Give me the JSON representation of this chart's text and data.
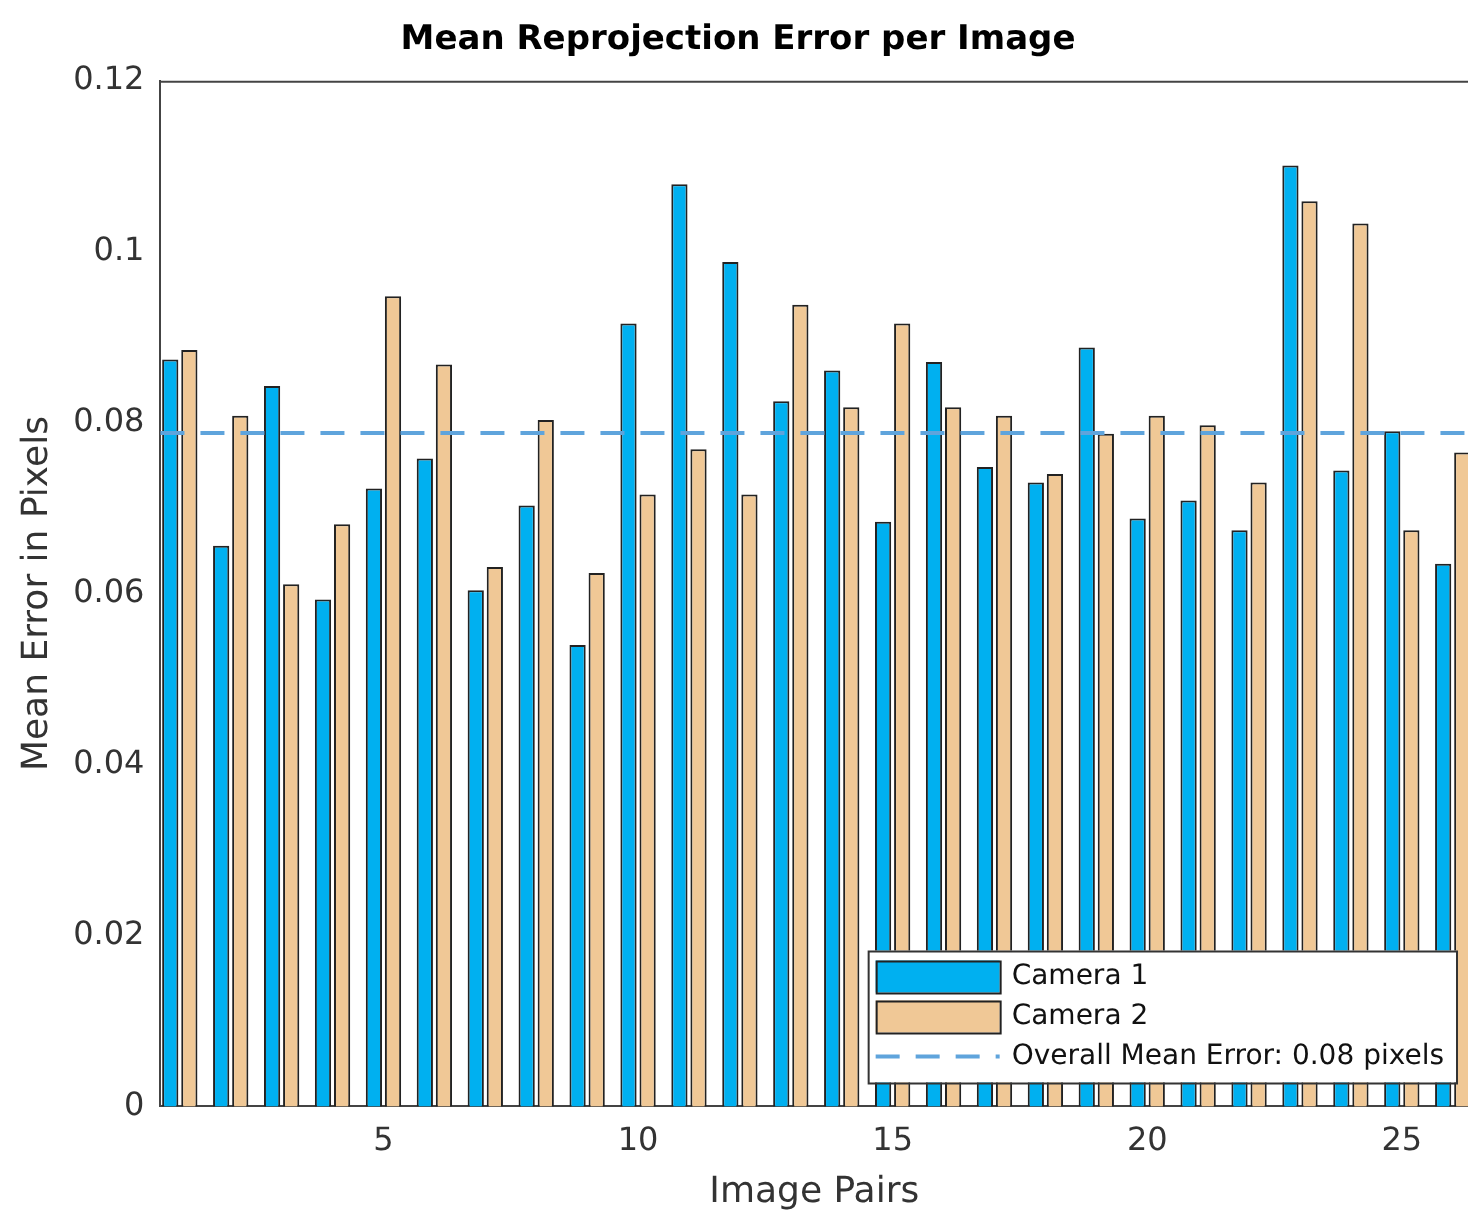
{
  "chart_data": {
    "type": "bar",
    "title": "Mean Reprojection Error per Image",
    "xlabel": "Image Pairs",
    "ylabel": "Mean Error in Pixels",
    "x": [
      1,
      2,
      3,
      4,
      5,
      6,
      7,
      8,
      9,
      10,
      11,
      12,
      13,
      14,
      15,
      16,
      17,
      18,
      19,
      20,
      21,
      22,
      23,
      24,
      25,
      26
    ],
    "series": [
      {
        "name": "Camera 1",
        "color": "#00b0f0",
        "values": [
          0.0874,
          0.0656,
          0.0843,
          0.0593,
          0.0723,
          0.0758,
          0.0604,
          0.0703,
          0.054,
          0.0916,
          0.1079,
          0.0988,
          0.0825,
          0.0861,
          0.0684,
          0.0871,
          0.0748,
          0.073,
          0.0888,
          0.0688,
          0.0709,
          0.0674,
          0.1101,
          0.0744,
          0.079,
          0.0635
        ]
      },
      {
        "name": "Camera 2",
        "color": "#f0c896",
        "values": [
          0.0885,
          0.0808,
          0.0611,
          0.0681,
          0.0948,
          0.0868,
          0.0631,
          0.0803,
          0.0624,
          0.0716,
          0.0769,
          0.0716,
          0.0938,
          0.0818,
          0.0916,
          0.0818,
          0.0808,
          0.074,
          0.0787,
          0.0808,
          0.0797,
          0.073,
          0.1059,
          0.1033,
          0.0674,
          0.0765
        ]
      }
    ],
    "xlim": [
      0.62,
      26.3
    ],
    "xticks": [
      5,
      10,
      15,
      20,
      25
    ],
    "ylim": [
      0,
      0.12
    ],
    "yticks": [
      0,
      0.02,
      0.04,
      0.06,
      0.08,
      0.1,
      0.12
    ],
    "ref_lines": [
      {
        "axis": "y",
        "value": 0.0788,
        "label": "Overall Mean Error: 0.08 pixels",
        "color": "#5fa4dc",
        "line_style": "dashed"
      }
    ],
    "legend": "bottom right",
    "grid": false
  }
}
